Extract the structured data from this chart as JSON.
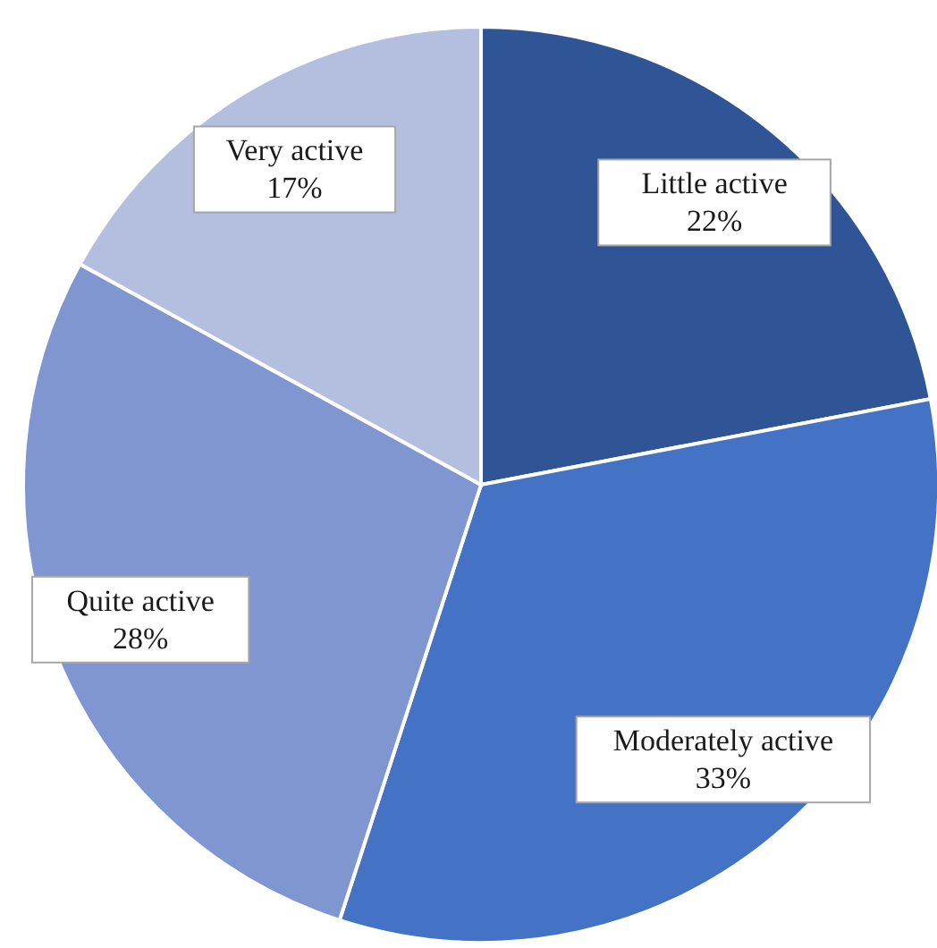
{
  "chart_data": {
    "type": "pie",
    "categories": [
      "Little active",
      "Moderately active",
      "Quite active",
      "Very active"
    ],
    "values": [
      22,
      33,
      28,
      17
    ],
    "value_labels": [
      "22%",
      "33%",
      "28%",
      "17%"
    ],
    "colors": [
      "#2f5597",
      "#4472c4",
      "#7f96d0",
      "#b4bfe0"
    ],
    "legend": false
  }
}
